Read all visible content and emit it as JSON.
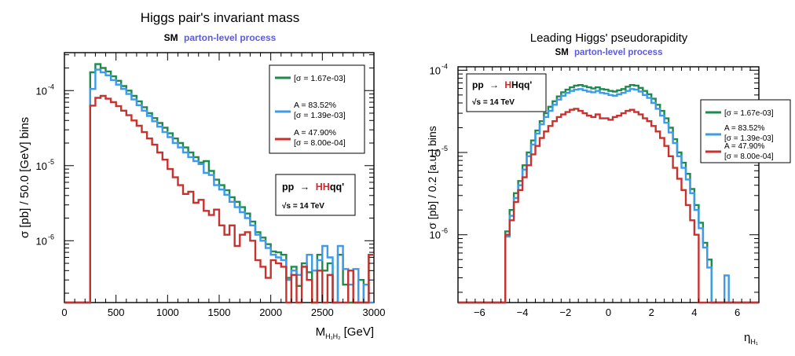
{
  "chart_data": [
    {
      "type": "step-histogram",
      "title": "Higgs pair's invariant mass",
      "subtitle": {
        "sm": "SM",
        "process": "parton-level process"
      },
      "xlabel": "M",
      "xlabel_sub": "H₁H₂",
      "xlabel_unit": "[GeV]",
      "ylabel": "σ [pb] / 50.0 [GeV] bins",
      "xlim": [
        0,
        3000
      ],
      "ylim_log": [
        1.5e-07,
        0.00032
      ],
      "x_ticks": [
        "0",
        "500",
        "1000",
        "1500",
        "2000",
        "2500",
        "3000"
      ],
      "x_tick_values": [
        0,
        500,
        1000,
        1500,
        2000,
        2500,
        3000
      ],
      "y_ticks": [
        "10",
        "10",
        "10"
      ],
      "y_tick_exps": [
        "-6",
        "-5",
        "-4"
      ],
      "y_tick_values": [
        1e-06,
        1e-05,
        0.0001
      ],
      "process_box": {
        "pp": "pp",
        "arrow": "→",
        "hh": "HH",
        "qq": "qq'",
        "sqrt": "√s = 14 TeV",
        "position": "middle-right"
      },
      "legend": {
        "position": "top-right",
        "entries": [
          {
            "line1": "[σ = 1.67e-03]",
            "line2": "",
            "color": "#1e8a4e"
          },
          {
            "line1": "A = 83.52%",
            "line2": "[σ = 1.39e-03]",
            "color": "#3d9be9"
          },
          {
            "line1": "A = 47.90%",
            "line2": "[σ = 8.00e-04]",
            "color": "#c8322e"
          }
        ]
      },
      "bins_x": [
        0,
        3000,
        50
      ],
      "series": [
        {
          "name": "[σ = 1.67e-03]",
          "color": "#1e8a4e",
          "values": [
            0,
            0,
            0,
            0,
            0,
            0.000175,
            0.000225,
            0.0002,
            0.00018,
            0.000155,
            0.000135,
            0.000115,
            0.0001,
            8.5e-05,
            7.2e-05,
            6e-05,
            5e-05,
            4.3e-05,
            3.7e-05,
            3.2e-05,
            2.7e-05,
            2.3e-05,
            2e-05,
            1.75e-05,
            1.5e-05,
            1.3e-05,
            1.1e-05,
            1.15e-05,
            8.5e-06,
            6.5e-06,
            5.5e-06,
            4.7e-06,
            3.8e-06,
            3.3e-06,
            2.8e-06,
            2.3e-06,
            1.8e-06,
            1.3e-06,
            1.1e-06,
            9e-07,
            7.2e-07,
            7e-07,
            6.5e-07,
            3.2e-07,
            4.5e-07,
            2.5e-07,
            5e-07,
            3.8e-07,
            0,
            6.5e-07,
            4e-07,
            5e-07,
            0,
            6.5e-07,
            2.6e-07,
            0,
            0,
            3e-07,
            0,
            6.5e-07
          ]
        },
        {
          "name": "A = 83.52%",
          "color": "#3d9be9",
          "values": [
            0,
            0,
            0,
            0,
            0,
            0.000105,
            0.00019,
            0.000175,
            0.00016,
            0.000138,
            0.00012,
            0.000105,
            9e-05,
            7.6e-05,
            6.4e-05,
            5.4e-05,
            4.6e-05,
            3.9e-05,
            3.3e-05,
            2.8e-05,
            2.4e-05,
            2e-05,
            1.75e-05,
            1.5e-05,
            1.3e-05,
            1.15e-05,
            1.05e-05,
            8e-06,
            7.5e-06,
            5.5e-06,
            4.8e-06,
            4.1e-06,
            3.3e-06,
            2.8e-06,
            2.4e-06,
            2e-06,
            1.6e-06,
            1.2e-06,
            1e-06,
            8e-07,
            6.5e-07,
            6e-07,
            5.5e-07,
            3e-07,
            4e-07,
            3.5e-07,
            4.5e-07,
            6.5e-07,
            4e-07,
            5.5e-07,
            8.5e-07,
            6e-07,
            0,
            8.5e-07,
            4.2e-07,
            2.6e-07,
            4.2e-07,
            0,
            2.6e-07,
            0
          ]
        },
        {
          "name": "A = 47.90%",
          "color": "#c8322e",
          "values": [
            0,
            0,
            0,
            0,
            0,
            6.3e-05,
            8e-05,
            8.5e-05,
            7.8e-05,
            7e-05,
            6.2e-05,
            5.4e-05,
            4.7e-05,
            4e-05,
            3.4e-05,
            2.8e-05,
            2.3e-05,
            1.9e-05,
            1.5e-05,
            1.2e-05,
            9e-06,
            7e-06,
            5.5e-06,
            4.2e-06,
            4.5e-06,
            3.2e-06,
            3.5e-06,
            2.5e-06,
            2.2e-06,
            2.6e-06,
            1.6e-06,
            1.2e-06,
            1.6e-06,
            8.5e-07,
            1.2e-06,
            1.3e-06,
            1e-06,
            5.5e-07,
            4.5e-07,
            3.2e-07,
            5.5e-07,
            5e-07,
            4.5e-07,
            0,
            3.5e-07,
            0,
            4.5e-07,
            3e-07,
            0,
            4e-07,
            0,
            3.5e-07,
            0,
            0,
            0,
            4e-07,
            0,
            0,
            0,
            6.5e-07
          ]
        }
      ]
    },
    {
      "type": "step-histogram",
      "title": "Leading Higgs' pseudorapidity",
      "subtitle": {
        "sm": "SM",
        "process": "parton-level process"
      },
      "xlabel": "η",
      "xlabel_sub": "H₁",
      "xlabel_unit": "",
      "ylabel": "σ [pb] / 0.2 [a.u.] bins",
      "xlim": [
        -7,
        7
      ],
      "ylim_log": [
        1.5e-07,
        0.00011
      ],
      "x_ticks": [
        "−6",
        "−4",
        "−2",
        "0",
        "2",
        "4",
        "6"
      ],
      "x_tick_values": [
        -6,
        -4,
        -2,
        0,
        2,
        4,
        6
      ],
      "y_ticks": [
        "10",
        "10",
        "10"
      ],
      "y_tick_exps": [
        "-6",
        "-5",
        "-4"
      ],
      "y_tick_values": [
        1e-06,
        1e-05,
        0.0001
      ],
      "process_box": {
        "pp": "pp",
        "arrow": "→",
        "hh": "H",
        "qq": "Hqq'",
        "sqrt": "√s = 14 TeV",
        "position": "top-left"
      },
      "legend": {
        "position": "top-right",
        "entries": [
          {
            "line1": "[σ = 1.67e-03]",
            "line2": "",
            "color": "#1e8a4e"
          },
          {
            "line1": "A = 83.52%",
            "line2": "[σ = 1.39e-03]",
            "color": "#3d9be9"
          },
          {
            "line1": "A = 47.90%",
            "line2": "[σ = 8.00e-04]",
            "color": "#c8322e"
          }
        ]
      },
      "bins_x": [
        -7,
        7,
        0.2
      ],
      "series": [
        {
          "name": "[σ = 1.67e-03]",
          "color": "#1e8a4e",
          "values": [
            0,
            0,
            0,
            0,
            0,
            0,
            0,
            0,
            0,
            0,
            0,
            1.1e-06,
            2e-06,
            3.2e-06,
            4.5e-06,
            7e-06,
            1e-05,
            1.4e-05,
            1.85e-05,
            2.4e-05,
            3e-05,
            3.6e-05,
            4.2e-05,
            4.8e-05,
            5.4e-05,
            5.8e-05,
            6.2e-05,
            6.5e-05,
            6.6e-05,
            6.4e-05,
            6.2e-05,
            6e-05,
            6.2e-05,
            5.9e-05,
            5.8e-05,
            5.6e-05,
            5.5e-05,
            5.7e-05,
            5.9e-05,
            6.3e-05,
            6.6e-05,
            6.5e-05,
            6.1e-05,
            5.6e-05,
            5.1e-05,
            4.5e-05,
            3.8e-05,
            3.2e-05,
            2.6e-05,
            2e-05,
            1.45e-05,
            1e-05,
            7.5e-06,
            5.5e-06,
            3.6e-06,
            2.3e-06,
            1.4e-06,
            8e-07,
            5e-07,
            0,
            0,
            0,
            0,
            0,
            0,
            0,
            0,
            0,
            0,
            0
          ]
        },
        {
          "name": "A = 83.52%",
          "color": "#3d9be9",
          "values": [
            0,
            0,
            0,
            0,
            0,
            0,
            0,
            0,
            0,
            0,
            0,
            9.5e-07,
            1.7e-06,
            2.8e-06,
            4e-06,
            6.2e-06,
            9e-06,
            1.25e-05,
            1.7e-05,
            2.2e-05,
            2.7e-05,
            3.2e-05,
            3.8e-05,
            4.4e-05,
            4.9e-05,
            5.3e-05,
            5.6e-05,
            5.8e-05,
            5.9e-05,
            5.7e-05,
            5.5e-05,
            5.4e-05,
            5.6e-05,
            5.3e-05,
            5.2e-05,
            5e-05,
            4.9e-05,
            5.1e-05,
            5.3e-05,
            5.6e-05,
            5.9e-05,
            5.8e-05,
            5.5e-05,
            5e-05,
            4.6e-05,
            4e-05,
            3.4e-05,
            2.8e-05,
            2.3e-05,
            1.75e-05,
            1.3e-05,
            9e-06,
            6.5e-06,
            4.7e-06,
            3.2e-06,
            2e-06,
            1.2e-06,
            7e-07,
            4e-07,
            0,
            0,
            0,
            3.2e-07,
            0,
            0,
            0,
            0,
            0,
            0,
            0
          ]
        },
        {
          "name": "A = 47.90%",
          "color": "#c8322e",
          "values": [
            0,
            0,
            0,
            0,
            0,
            0,
            0,
            0,
            0,
            0,
            0,
            1e-06,
            1.5e-06,
            2.5e-06,
            3.5e-06,
            5e-06,
            7e-06,
            9.5e-06,
            1.2e-05,
            1.5e-05,
            1.8e-05,
            2.1e-05,
            2.4e-05,
            2.7e-05,
            2.9e-05,
            3.1e-05,
            3.3e-05,
            3.4e-05,
            3.2e-05,
            3e-05,
            2.8e-05,
            2.7e-05,
            2.9e-05,
            2.6e-05,
            2.6e-05,
            2.5e-05,
            2.7e-05,
            2.8e-05,
            3e-05,
            3.2e-05,
            3.3e-05,
            3.1e-05,
            2.9e-05,
            2.6e-05,
            2.4e-05,
            2.1e-05,
            1.8e-05,
            1.5e-05,
            1.2e-05,
            9e-06,
            6.5e-06,
            4.8e-06,
            3.5e-06,
            2.3e-06,
            1.5e-06,
            1e-06,
            0,
            0,
            0,
            0,
            0,
            0,
            0,
            0,
            0,
            0,
            0,
            0,
            0,
            0
          ]
        }
      ]
    }
  ]
}
